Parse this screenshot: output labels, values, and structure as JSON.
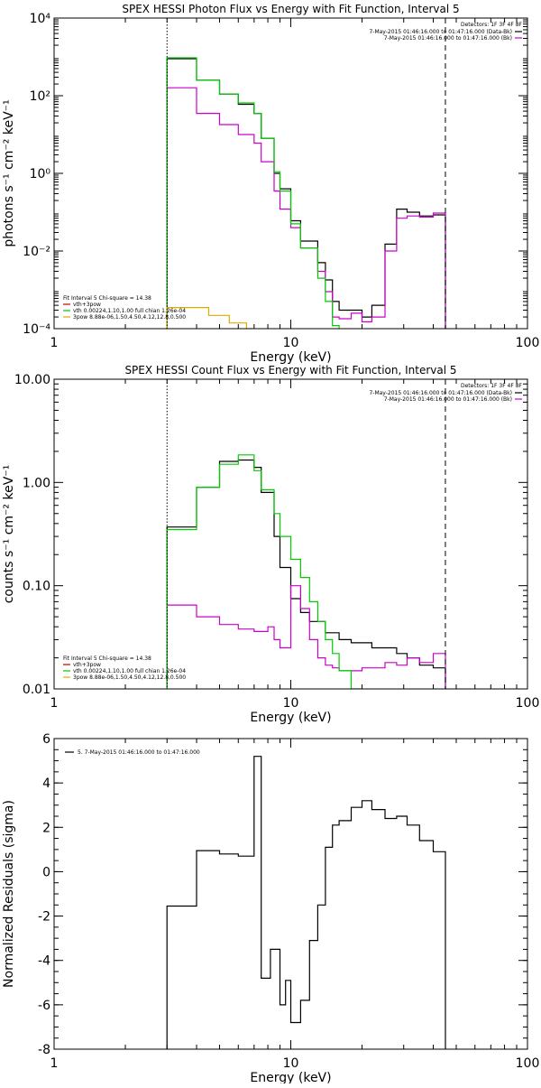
{
  "chart_data": [
    {
      "type": "line",
      "title": "SPEX HESSI Photon Flux vs Energy with Fit Function, Interval 5",
      "xlabel": "Energy (keV)",
      "ylabel": "photons s⁻¹ cm⁻² keV⁻¹",
      "xscale": "log",
      "yscale": "log",
      "xlim": [
        1,
        100
      ],
      "ylim": [
        0.0001,
        10000
      ],
      "xticks": [
        1,
        10,
        100
      ],
      "xtick_labels": [
        "1",
        "10",
        "100"
      ],
      "yticks": [
        0.0001,
        0.01,
        1,
        100,
        10000
      ],
      "ytick_labels": [
        "10⁻⁴",
        "10⁻²",
        "10⁰",
        "10²",
        "10⁴"
      ],
      "grid": false,
      "vlines": [
        {
          "x": 3,
          "style": "dotted"
        },
        {
          "x": 45,
          "style": "dashed"
        }
      ],
      "legend_top_right": {
        "header": "Detectors: 1F 3F 4F 8F",
        "entries": [
          {
            "label": "7-May-2015 01:46:16.000 to 01:47:16.000 (Data-Bk)",
            "color": "#000000"
          },
          {
            "label": "7-May-2015 01:46:16.000 to 01:47:16.000 (Bk)",
            "color": "#cc00cc"
          }
        ]
      },
      "legend_bottom_left": {
        "header": "Fit Interval  5    Chi-square = 14.38",
        "entries": [
          {
            "label": "vth+3pow",
            "color": "#cc0000"
          },
          {
            "label": "vth 0.00224,1.10,1.00  full chian 1.26e-04",
            "color": "#00cc00"
          },
          {
            "label": "3pow 8.88e-06,1.50,4.50,4.12,12.8,0.500",
            "color": "#ddaa00"
          }
        ]
      },
      "bin_edges": [
        3,
        3.5,
        4,
        4.5,
        5,
        5.5,
        6,
        6.5,
        7,
        7.5,
        8,
        8.5,
        9,
        10,
        11,
        12,
        13,
        14,
        15,
        16,
        18,
        20,
        22,
        25,
        28,
        31,
        35,
        40,
        45
      ],
      "series": [
        {
          "name": "Data-Bk",
          "color": "#000000",
          "values": [
            900,
            900,
            250,
            250,
            110,
            110,
            60,
            60,
            35,
            8,
            8,
            1.0,
            0.4,
            0.06,
            0.018,
            0.018,
            0.005,
            0.0018,
            0.0005,
            0.0003,
            0.0003,
            0.0002,
            0.0004,
            0.015,
            0.12,
            0.1,
            0.08,
            0.085
          ]
        },
        {
          "name": "Bk",
          "color": "#cc00cc",
          "values": [
            160,
            160,
            35,
            35,
            18,
            18,
            10,
            10,
            6,
            2,
            2,
            0.35,
            0.12,
            0.04,
            0.012,
            0.012,
            0.003,
            0.0009,
            0.0002,
            0.00018,
            0.00025,
            0.00015,
            0.0002,
            0.01,
            0.07,
            0.08,
            0.075,
            0.095
          ]
        },
        {
          "name": "vth",
          "color": "#00cc00",
          "values": [
            950,
            950,
            250,
            250,
            110,
            110,
            65,
            65,
            35,
            8,
            8,
            1.1,
            0.35,
            0.05,
            0.012,
            0.012,
            0.002,
            0.0005,
            0.00012
          ]
        },
        {
          "name": "3pow",
          "color": "#ddaa00",
          "values": [
            0.00035,
            0.00035,
            0.00035,
            0.00022,
            0.00022,
            0.00014,
            0.00014,
            0.0001
          ]
        }
      ]
    },
    {
      "type": "line",
      "title": "SPEX HESSI Count Flux vs Energy with Fit Function, Interval 5",
      "xlabel": "Energy (keV)",
      "ylabel": "counts s⁻¹ cm⁻² keV⁻¹",
      "xscale": "log",
      "yscale": "log",
      "xlim": [
        1,
        100
      ],
      "ylim": [
        0.01,
        10
      ],
      "xticks": [
        1,
        10,
        100
      ],
      "xtick_labels": [
        "1",
        "10",
        "100"
      ],
      "yticks": [
        0.01,
        0.1,
        1,
        10
      ],
      "ytick_labels": [
        "0.01",
        "0.10",
        "1.00",
        "10.00"
      ],
      "grid": false,
      "vlines": [
        {
          "x": 3,
          "style": "dotted"
        },
        {
          "x": 45,
          "style": "dashed"
        }
      ],
      "legend_top_right": {
        "header": "Detectors: 1F 3F 4F 8F",
        "entries": [
          {
            "label": "7-May-2015 01:46:16.000 to 01:47:16.000 (Data-Bk)",
            "color": "#000000"
          },
          {
            "label": "7-May-2015 01:46:16.000 to 01:47:16.000 (Bk)",
            "color": "#cc00cc"
          }
        ]
      },
      "legend_bottom_left": {
        "header": "Fit Interval  5    Chi-square = 14.38",
        "entries": [
          {
            "label": "vth+3pow",
            "color": "#cc0000"
          },
          {
            "label": "vth 0.00224,1.10,1.00  full chian 1.26e-04",
            "color": "#00cc00"
          },
          {
            "label": "3pow 8.88e-06,1.50,4.50,4.12,12.8,0.500",
            "color": "#ddaa00"
          }
        ]
      },
      "bin_edges": [
        3,
        3.5,
        4,
        4.5,
        5,
        5.5,
        6,
        6.5,
        7,
        7.5,
        8,
        8.5,
        9,
        9.5,
        10,
        11,
        12,
        13,
        14,
        15,
        16,
        18,
        20,
        22,
        25,
        28,
        31,
        35,
        40,
        45
      ],
      "series": [
        {
          "name": "Data-Bk",
          "color": "#000000",
          "values": [
            0.37,
            0.37,
            0.9,
            0.9,
            1.6,
            1.6,
            1.65,
            1.65,
            1.4,
            0.8,
            0.8,
            0.3,
            0.15,
            0.15,
            0.075,
            0.055,
            0.045,
            0.045,
            0.035,
            0.035,
            0.03,
            0.028,
            0.028,
            0.025,
            0.025,
            0.022,
            0.02,
            0.017,
            0.016
          ]
        },
        {
          "name": "Bk",
          "color": "#cc00cc",
          "values": [
            0.065,
            0.065,
            0.05,
            0.05,
            0.042,
            0.042,
            0.038,
            0.038,
            0.036,
            0.036,
            0.04,
            0.03,
            0.025,
            0.025,
            0.1,
            0.06,
            0.03,
            0.02,
            0.017,
            0.016,
            0.015,
            0.015,
            0.016,
            0.016,
            0.018,
            0.017,
            0.02,
            0.018,
            0.022
          ]
        },
        {
          "name": "vth",
          "color": "#00cc00",
          "values": [
            0.35,
            0.35,
            0.9,
            0.9,
            1.5,
            1.5,
            1.85,
            1.85,
            1.3,
            0.85,
            0.85,
            0.5,
            0.3,
            0.3,
            0.18,
            0.12,
            0.07,
            0.045,
            0.03,
            0.022,
            0.015,
            0.01
          ]
        }
      ]
    },
    {
      "type": "line",
      "title": "",
      "xlabel": "Energy (keV)",
      "ylabel": "Normalized Residuals (sigma)",
      "xscale": "log",
      "yscale": "linear",
      "xlim": [
        1,
        100
      ],
      "ylim": [
        -8,
        6
      ],
      "xticks": [
        1,
        10,
        100
      ],
      "xtick_labels": [
        "1",
        "10",
        "100"
      ],
      "yticks": [
        -8,
        -6,
        -4,
        -2,
        0,
        2,
        4,
        6
      ],
      "ytick_labels": [
        "-8",
        "-6",
        "-4",
        "-2",
        "0",
        "2",
        "4",
        "6"
      ],
      "grid": false,
      "legend": {
        "entries": [
          {
            "label": "5.  7-May-2015 01:46:16.000 to 01:47:16.000",
            "color": "#000000"
          }
        ]
      },
      "bin_edges": [
        3,
        4,
        5,
        6,
        7,
        7.5,
        8.2,
        9,
        9.5,
        10,
        11,
        12,
        13,
        14,
        15,
        16,
        18,
        20,
        22,
        25,
        28,
        31,
        35,
        40,
        45
      ],
      "series": [
        {
          "name": "5",
          "color": "#000000",
          "values": [
            -1.55,
            0.95,
            0.8,
            0.7,
            5.2,
            -4.8,
            -3.5,
            -6.0,
            -4.9,
            -6.8,
            -5.8,
            -3.1,
            -1.5,
            1.1,
            2.1,
            2.3,
            2.9,
            3.2,
            2.8,
            2.4,
            2.5,
            2.1,
            1.4,
            0.9
          ]
        }
      ]
    }
  ]
}
